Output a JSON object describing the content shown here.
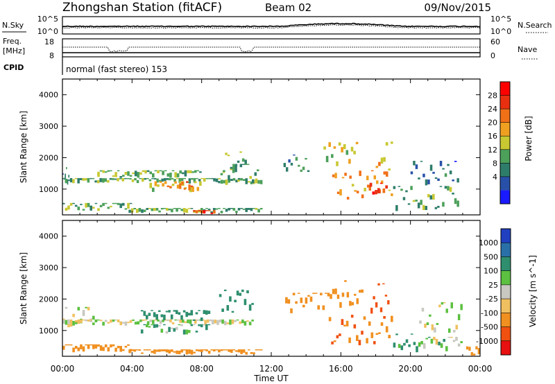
{
  "header": {
    "station": "Zhongshan Station (fitACF)",
    "beam": "Beam 02",
    "date": "09/Nov/2015"
  },
  "noise_panel": {
    "left_label": "N.Sky",
    "right_label": "N.Search",
    "left_ticks": [
      "10^5",
      "10^0"
    ],
    "right_ticks": [
      "10^5",
      "10^0"
    ]
  },
  "freq_panel": {
    "left_label_1": "Freq.",
    "left_label_2": "[MHz]",
    "right_label": "Nave",
    "left_ticks": [
      "18",
      "8"
    ],
    "right_ticks": [
      "60",
      "0"
    ]
  },
  "cpid_panel": {
    "label": "CPID",
    "text": "normal (fast stereo) 153"
  },
  "power_panel": {
    "ylabel": "Slant Range [km]",
    "yticks": [
      "4000",
      "3000",
      "2000",
      "1000"
    ],
    "colorbar_label": "Power [dB]",
    "colorbar_ticks": [
      "28",
      "24",
      "20",
      "16",
      "12",
      "8",
      "4"
    ],
    "colors": [
      "#1a1aff",
      "#2850a8",
      "#2e7d6a",
      "#4ca05a",
      "#c8c832",
      "#f0a020",
      "#f07018",
      "#e83010",
      "#ff0000"
    ]
  },
  "velocity_panel": {
    "ylabel": "Slant Range [km]",
    "yticks": [
      "4000",
      "3000",
      "2000",
      "1000"
    ],
    "colorbar_label": "Velocity [m s^-1]",
    "colorbar_ticks": [
      "1000",
      "500",
      "100",
      "25",
      "-25",
      "-100",
      "-500",
      "-1000"
    ],
    "colors": [
      "#2040c0",
      "#2a70a8",
      "#2e8e6e",
      "#5cc040",
      "#c8c8c0",
      "#f0c060",
      "#f09020",
      "#f05010",
      "#e81010"
    ]
  },
  "x_axis": {
    "ticks": [
      "00:00",
      "04:00",
      "08:00",
      "12:00",
      "16:00",
      "20:00",
      "00:00"
    ],
    "label": "Time UT"
  },
  "chart_data": [
    {
      "type": "heatmap",
      "title": "Zhongshan Station (fitACF) Beam 02 09/Nov/2015",
      "xlabel": "Time UT",
      "ylabel": "Slant Range [km]",
      "quantity": "Power [dB]",
      "xlim": [
        "00:00",
        "24:00"
      ],
      "ylim": [
        180,
        4500
      ],
      "clim": [
        0,
        32
      ],
      "x_ticks": [
        "00:00",
        "04:00",
        "08:00",
        "12:00",
        "16:00",
        "20:00",
        "00:00"
      ],
      "y_ticks": [
        1000,
        2000,
        3000,
        4000
      ],
      "colorbar_ticks": [
        4,
        8,
        12,
        16,
        20,
        24,
        28
      ],
      "regions": [
        {
          "t0": 0.0,
          "t1": 0.4,
          "r0": 1100,
          "r1": 1700,
          "v": 8
        },
        {
          "t0": 0.0,
          "t1": 11.5,
          "r0": 1150,
          "r1": 1350,
          "v": 12
        },
        {
          "t0": 0.0,
          "t1": 4.0,
          "r0": 300,
          "r1": 560,
          "v": 13
        },
        {
          "t0": 2.0,
          "t1": 8.0,
          "r0": 1350,
          "r1": 1600,
          "v": 13
        },
        {
          "t0": 5.0,
          "t1": 8.0,
          "r0": 900,
          "r1": 1250,
          "v": 18
        },
        {
          "t0": 6.7,
          "t1": 7.5,
          "r0": 950,
          "r1": 1250,
          "v": 25
        },
        {
          "t0": 3.8,
          "t1": 11.5,
          "r0": 230,
          "r1": 400,
          "v": 12
        },
        {
          "t0": 7.5,
          "t1": 8.8,
          "r0": 200,
          "r1": 330,
          "v": 27
        },
        {
          "t0": 9.2,
          "t1": 10.6,
          "r0": 1500,
          "r1": 2200,
          "v": 14
        },
        {
          "t0": 8.8,
          "t1": 11.3,
          "r0": 1100,
          "r1": 1800,
          "v": 11
        },
        {
          "t0": 12.7,
          "t1": 14.2,
          "r0": 1500,
          "r1": 2100,
          "v": 9
        },
        {
          "t0": 15.0,
          "t1": 17.0,
          "r0": 1700,
          "r1": 2500,
          "v": 16
        },
        {
          "t0": 15.5,
          "t1": 19.0,
          "r0": 600,
          "r1": 1600,
          "v": 20
        },
        {
          "t0": 17.5,
          "t1": 18.7,
          "r0": 700,
          "r1": 1200,
          "v": 27
        },
        {
          "t0": 18.0,
          "t1": 19.0,
          "r0": 1400,
          "r1": 2600,
          "v": 18
        },
        {
          "t0": 19.0,
          "t1": 22.8,
          "r0": 300,
          "r1": 1100,
          "v": 12
        },
        {
          "t0": 20.0,
          "t1": 22.8,
          "r0": 1100,
          "r1": 1900,
          "v": 7
        }
      ]
    },
    {
      "type": "heatmap",
      "title": "Zhongshan Station (fitACF) Beam 02 09/Nov/2015",
      "xlabel": "Time UT",
      "ylabel": "Slant Range [km]",
      "quantity": "Velocity [m s^-1]",
      "xlim": [
        "00:00",
        "24:00"
      ],
      "ylim": [
        180,
        4500
      ],
      "clim": [
        -1200,
        1200
      ],
      "x_ticks": [
        "00:00",
        "04:00",
        "08:00",
        "12:00",
        "16:00",
        "20:00",
        "00:00"
      ],
      "y_ticks": [
        1000,
        2000,
        3000,
        4000
      ],
      "colorbar_ticks": [
        1000,
        500,
        100,
        25,
        -25,
        -100,
        -500,
        -1000
      ],
      "regions": [
        {
          "t0": 0.0,
          "t1": 2.0,
          "r0": 1100,
          "r1": 1750,
          "v": 0
        },
        {
          "t0": 0.0,
          "t1": 11.0,
          "r0": 1150,
          "r1": 1350,
          "v": 0
        },
        {
          "t0": 0.0,
          "t1": 4.0,
          "r0": 300,
          "r1": 560,
          "v": -300
        },
        {
          "t0": 4.5,
          "t1": 8.5,
          "r0": 1300,
          "r1": 1650,
          "v": 200
        },
        {
          "t0": 4.5,
          "t1": 8.5,
          "r0": 850,
          "r1": 1200,
          "v": 80
        },
        {
          "t0": 3.8,
          "t1": 11.5,
          "r0": 230,
          "r1": 400,
          "v": -300
        },
        {
          "t0": 9.0,
          "t1": 11.0,
          "r0": 1500,
          "r1": 2300,
          "v": 300
        },
        {
          "t0": 12.8,
          "t1": 15.5,
          "r0": 1500,
          "r1": 2200,
          "v": -400
        },
        {
          "t0": 15.5,
          "t1": 17.3,
          "r0": 1700,
          "r1": 2600,
          "v": -300
        },
        {
          "t0": 15.3,
          "t1": 19.0,
          "r0": 500,
          "r1": 1500,
          "v": -500
        },
        {
          "t0": 17.7,
          "t1": 18.8,
          "r0": 1500,
          "r1": 2500,
          "v": -700
        },
        {
          "t0": 19.0,
          "t1": 20.3,
          "r0": 300,
          "r1": 900,
          "v": 150
        },
        {
          "t0": 20.3,
          "t1": 23.0,
          "r0": 300,
          "r1": 800,
          "v": 40
        },
        {
          "t0": 20.5,
          "t1": 23.0,
          "r0": 900,
          "r1": 1900,
          "v": 0
        },
        {
          "t0": 23.2,
          "t1": 24.0,
          "r0": 200,
          "r1": 500,
          "v": -300
        }
      ]
    }
  ]
}
